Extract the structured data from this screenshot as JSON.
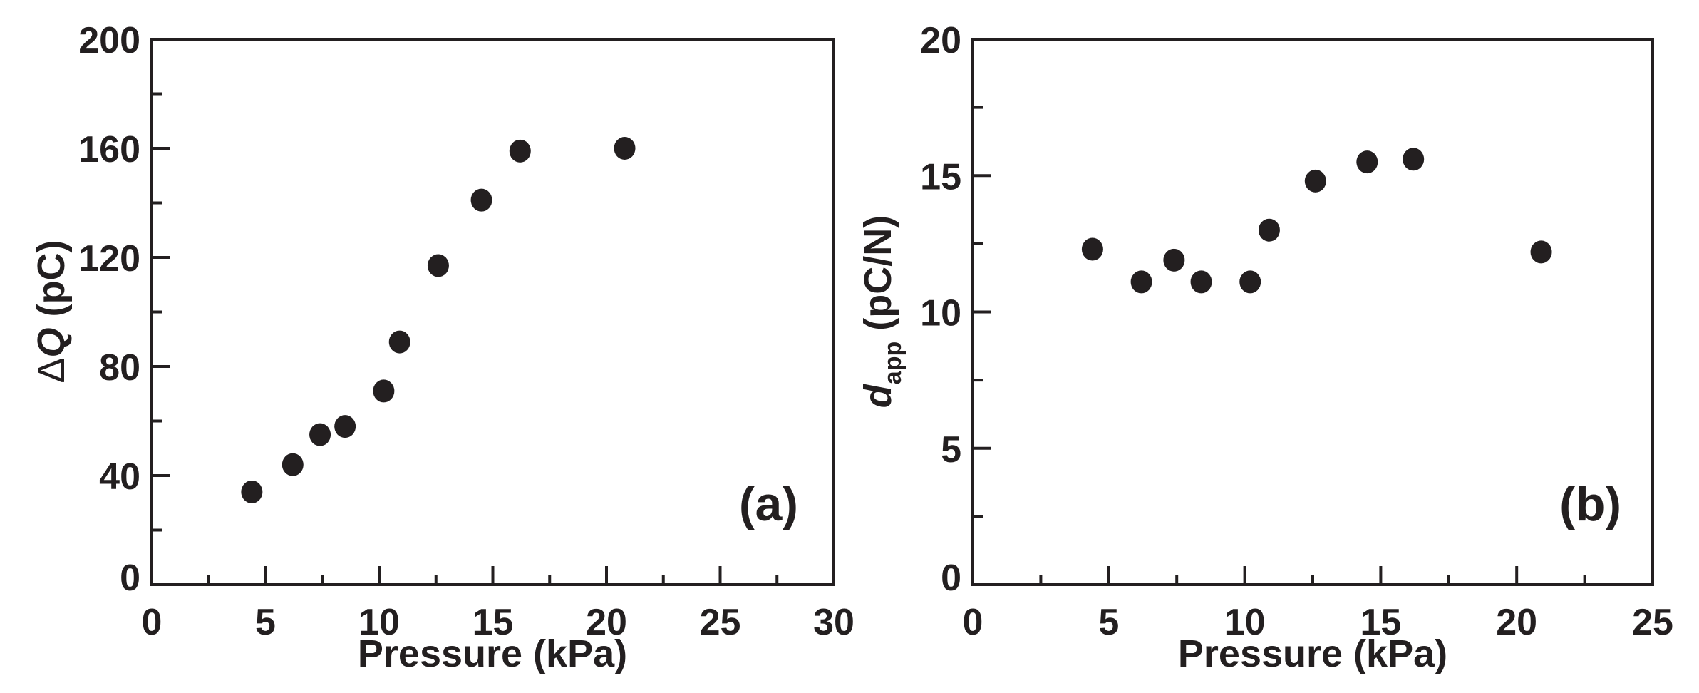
{
  "chart_data": [
    {
      "type": "scatter",
      "panel_label": "(a)",
      "xlabel": "Pressure (kPa)",
      "ylabel": {
        "prefix": "Δ",
        "symbol": "Q",
        "unit": " (pC)"
      },
      "xlim": [
        0,
        30
      ],
      "ylim": [
        0,
        200
      ],
      "xticks": [
        0,
        5,
        10,
        15,
        20,
        25,
        30
      ],
      "yticks": [
        0,
        40,
        80,
        120,
        160,
        200
      ],
      "x_minor_step": 2.5,
      "y_minor_step": 20,
      "grid": false,
      "marker": "filled-circle",
      "color": "#231f20",
      "x": [
        4.4,
        6.2,
        7.4,
        8.5,
        10.2,
        10.9,
        12.6,
        14.5,
        16.2,
        20.8
      ],
      "y": [
        34,
        44,
        55,
        58,
        71,
        89,
        117,
        141,
        159,
        160
      ]
    },
    {
      "type": "scatter",
      "panel_label": "(b)",
      "xlabel": "Pressure (kPa)",
      "ylabel": {
        "symbol": "d",
        "subscript": "app",
        "unit": " (pC/N)"
      },
      "xlim": [
        0,
        25
      ],
      "ylim": [
        0,
        20
      ],
      "xticks": [
        0,
        5,
        10,
        15,
        20,
        25
      ],
      "yticks": [
        0,
        5,
        10,
        15,
        20
      ],
      "x_minor_step": 2.5,
      "y_minor_step": 2.5,
      "grid": false,
      "marker": "filled-circle",
      "color": "#231f20",
      "x": [
        4.4,
        6.2,
        7.4,
        8.4,
        10.2,
        10.9,
        12.6,
        14.5,
        16.2,
        20.9
      ],
      "y": [
        12.3,
        11.1,
        11.9,
        11.1,
        11.1,
        13.0,
        14.8,
        15.5,
        15.6,
        12.2
      ]
    }
  ]
}
